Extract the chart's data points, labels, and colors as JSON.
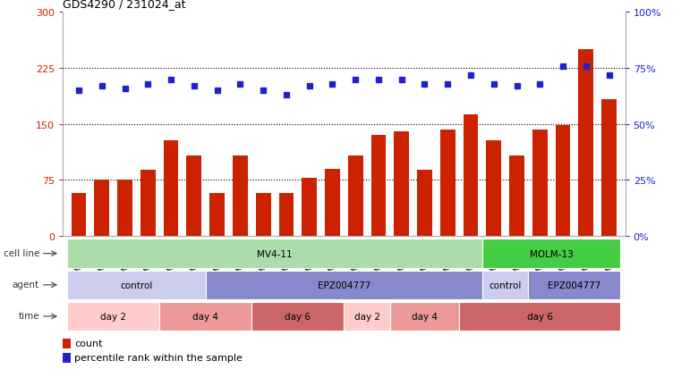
{
  "title": "GDS4290 / 231024_at",
  "samples": [
    "GSM739151",
    "GSM739152",
    "GSM739153",
    "GSM739157",
    "GSM739158",
    "GSM739159",
    "GSM739163",
    "GSM739164",
    "GSM739165",
    "GSM739148",
    "GSM739149",
    "GSM739150",
    "GSM739154",
    "GSM739155",
    "GSM739156",
    "GSM739160",
    "GSM739161",
    "GSM739162",
    "GSM739169",
    "GSM739170",
    "GSM739171",
    "GSM739166",
    "GSM739167",
    "GSM739168"
  ],
  "counts": [
    57,
    75,
    75,
    88,
    128,
    108,
    58,
    108,
    58,
    58,
    78,
    90,
    108,
    135,
    140,
    88,
    143,
    163,
    128,
    108,
    143,
    148,
    250,
    183
  ],
  "percentile_ranks": [
    65,
    67,
    66,
    68,
    70,
    67,
    65,
    68,
    65,
    63,
    67,
    68,
    70,
    70,
    70,
    68,
    68,
    72,
    68,
    67,
    68,
    76,
    76,
    72
  ],
  "bar_color": "#cc2200",
  "dot_color": "#2222cc",
  "ylim_left": [
    0,
    300
  ],
  "ylim_right": [
    0,
    100
  ],
  "yticks_left": [
    0,
    75,
    150,
    225,
    300
  ],
  "yticks_right": [
    0,
    25,
    50,
    75,
    100
  ],
  "ytick_labels_left": [
    "0",
    "75",
    "150",
    "225",
    "300"
  ],
  "ytick_labels_right": [
    "0%",
    "25%",
    "50%",
    "75%",
    "100%"
  ],
  "hlines": [
    75,
    150,
    225
  ],
  "cell_line_groups": [
    {
      "label": "MV4-11",
      "start": 0,
      "end": 18,
      "color": "#aaddaa"
    },
    {
      "label": "MOLM-13",
      "start": 18,
      "end": 24,
      "color": "#44cc44"
    }
  ],
  "agent_groups": [
    {
      "label": "control",
      "start": 0,
      "end": 6,
      "color": "#ccccee"
    },
    {
      "label": "EPZ004777",
      "start": 6,
      "end": 18,
      "color": "#8888cc"
    },
    {
      "label": "control",
      "start": 18,
      "end": 20,
      "color": "#ccccee"
    },
    {
      "label": "EPZ004777",
      "start": 20,
      "end": 24,
      "color": "#8888cc"
    }
  ],
  "time_groups": [
    {
      "label": "day 2",
      "start": 0,
      "end": 4,
      "color": "#ffcccc"
    },
    {
      "label": "day 4",
      "start": 4,
      "end": 8,
      "color": "#ee9999"
    },
    {
      "label": "day 6",
      "start": 8,
      "end": 12,
      "color": "#cc6666"
    },
    {
      "label": "day 2",
      "start": 12,
      "end": 14,
      "color": "#ffcccc"
    },
    {
      "label": "day 4",
      "start": 14,
      "end": 17,
      "color": "#ee9999"
    },
    {
      "label": "day 6",
      "start": 17,
      "end": 24,
      "color": "#cc6666"
    }
  ],
  "bg_color": "#ffffff"
}
